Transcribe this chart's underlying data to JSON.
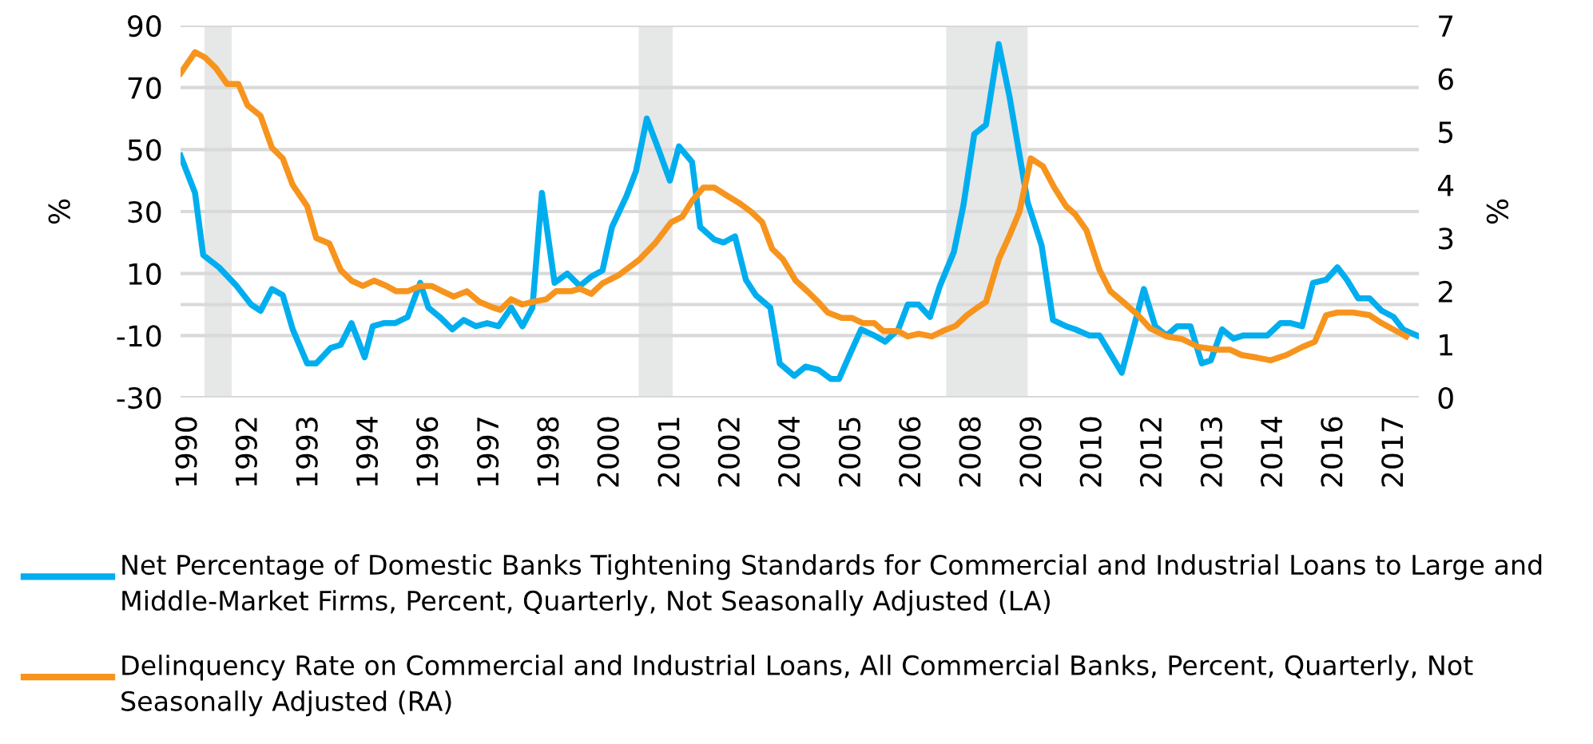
{
  "chart_data": {
    "type": "line",
    "ylabel": "%",
    "y2label": "%",
    "x": [
      1990.15,
      1990.47,
      1990.65,
      1991.0,
      1991.39,
      1991.71,
      1991.92,
      1992.17,
      1992.41,
      1992.63,
      1992.95,
      1993.15,
      1993.47,
      1993.69,
      1993.93,
      1994.22,
      1994.4,
      1994.64,
      1994.89,
      1995.17,
      1995.45,
      1995.63,
      1995.88,
      1996.16,
      1996.41,
      1996.68,
      1996.93,
      1997.18,
      1997.46,
      1997.71,
      1997.93,
      1998.14,
      1998.42,
      1998.7,
      1998.98,
      1999.23,
      1999.48,
      1999.69,
      2000.01,
      2000.22,
      2000.46,
      2000.72,
      2000.97,
      2001.17,
      2001.46,
      2001.64,
      2001.95,
      2002.16,
      2002.41,
      2002.65,
      2002.87,
      2003.19,
      2003.4,
      2003.72,
      2003.97,
      2004.25,
      2004.53,
      2004.71,
      2004.95,
      2005.2,
      2005.49,
      2005.73,
      2006.02,
      2006.23,
      2006.47,
      2006.72,
      2006.94,
      2007.25,
      2007.46,
      2007.7,
      2007.96,
      2008.24,
      2008.48,
      2008.88,
      2009.19,
      2009.44,
      2009.73,
      2009.93,
      2010.25,
      2010.47,
      2010.96,
      2011.45,
      2011.7,
      2011.95,
      2012.19,
      2012.48,
      2012.73,
      2012.93,
      2013.18,
      2013.43,
      2013.64,
      2013.89,
      2014.18,
      2014.47,
      2014.7,
      2014.95,
      2015.19,
      2015.48,
      2015.73,
      2015.94,
      2016.19,
      2016.44,
      2016.71,
      2016.97,
      2017.18,
      2017.49
    ],
    "series": [
      {
        "name": "Net Percentage of Domestic Banks Tightening Standards for Commercial and Industrial Loans to Large and Middle-Market Firms, Percent, Quarterly, Not Seasonally Adjusted (LA)",
        "color": "#00aeef",
        "values": [
          48,
          36,
          16,
          12,
          6,
          0,
          -2,
          5,
          3,
          -8,
          -19,
          -19,
          -14,
          -13,
          -6,
          -17,
          -7,
          -6,
          -6,
          -4,
          7,
          -1,
          -4,
          -8,
          -5,
          -7,
          -6,
          -7,
          -1,
          -7,
          -1,
          36,
          7,
          10,
          6,
          9,
          11,
          25,
          35,
          43,
          60,
          50,
          40,
          51,
          46,
          25,
          21,
          20,
          22,
          8,
          3,
          -1,
          -19,
          -23,
          -20,
          -21,
          -24,
          -24,
          -16,
          -8,
          -10,
          -12,
          -8,
          0,
          0,
          -4,
          6,
          17,
          32,
          55,
          58,
          84,
          67,
          33,
          19,
          -5,
          -7,
          -8,
          -10,
          -10,
          -22,
          5,
          -7,
          -10,
          -7,
          -7,
          -19,
          -18,
          -8,
          -11,
          -10,
          -10,
          -10,
          -6,
          -6,
          -7,
          7,
          8,
          12,
          8,
          2,
          2,
          -2,
          -4,
          -8,
          -10
        ]
      },
      {
        "name": "Delinquency Rate on Commercial and Industrial Loans, All Commercial Banks, Percent, Quarterly, Not Seasonally Adjusted (RA)",
        "color": "#f7941d",
        "axis": "y2",
        "x": [
          1990.15,
          1990.47,
          1990.69,
          1990.93,
          1991.18,
          1991.43,
          1991.63,
          1991.92,
          1992.17,
          1992.41,
          1992.63,
          1992.95,
          1993.15,
          1993.44,
          1993.69,
          1993.93,
          1994.18,
          1994.43,
          1994.71,
          1994.92,
          1995.17,
          1995.45,
          1995.7,
          1995.94,
          1996.19,
          1996.48,
          1996.76,
          1997.04,
          1997.22,
          1997.46,
          1997.71,
          1997.93,
          1998.24,
          1998.45,
          1998.78,
          1998.98,
          1999.23,
          1999.48,
          1999.83,
          2000.3,
          2000.64,
          2001.0,
          2001.24,
          2001.46,
          2001.71,
          2001.95,
          2002.23,
          2002.52,
          2002.76,
          2003.01,
          2003.23,
          2003.47,
          2003.75,
          2004.01,
          2004.25,
          2004.46,
          2004.77,
          2004.99,
          2005.24,
          2005.49,
          2005.69,
          2006.02,
          2006.23,
          2006.47,
          2006.76,
          2007.0,
          2007.29,
          2007.54,
          2007.78,
          2007.96,
          2008.24,
          2008.48,
          2008.7,
          2008.95,
          2009.22,
          2009.47,
          2009.73,
          2009.93,
          2010.18,
          2010.47,
          2010.71,
          2010.99,
          2011.32,
          2011.59,
          2011.95,
          2012.3,
          2012.66,
          2013.08,
          2013.36,
          2013.61,
          2013.96,
          2014.25,
          2014.6,
          2014.95,
          2015.23,
          2015.48,
          2015.73,
          2016.08,
          2016.44,
          2016.71,
          2017.25
        ],
        "values": [
          6.1,
          6.5,
          6.4,
          6.2,
          5.9,
          5.9,
          5.5,
          5.3,
          4.7,
          4.5,
          4.0,
          3.6,
          3.0,
          2.9,
          2.4,
          2.2,
          2.1,
          2.2,
          2.1,
          2.0,
          2.0,
          2.1,
          2.1,
          2.0,
          1.9,
          2.0,
          1.8,
          1.7,
          1.65,
          1.85,
          1.75,
          1.8,
          1.85,
          2.0,
          2.0,
          2.05,
          1.95,
          2.15,
          2.3,
          2.6,
          2.9,
          3.3,
          3.4,
          3.7,
          3.95,
          3.95,
          3.8,
          3.65,
          3.5,
          3.3,
          2.8,
          2.6,
          2.2,
          2.0,
          1.8,
          1.6,
          1.5,
          1.5,
          1.4,
          1.4,
          1.25,
          1.25,
          1.15,
          1.2,
          1.15,
          1.25,
          1.35,
          1.55,
          1.7,
          1.8,
          2.6,
          3.05,
          3.5,
          4.5,
          4.35,
          3.95,
          3.6,
          3.45,
          3.15,
          2.4,
          2.0,
          1.8,
          1.55,
          1.3,
          1.15,
          1.1,
          0.95,
          0.9,
          0.9,
          0.8,
          0.75,
          0.7,
          0.8,
          0.95,
          1.05,
          1.55,
          1.6,
          1.6,
          1.55,
          1.4,
          1.15
        ]
      }
    ],
    "xlim": [
      1990.15,
      2017.53
    ],
    "xticks": [
      {
        "value": 1990.33,
        "label": "1990"
      },
      {
        "value": 1991.66,
        "label": "1992"
      },
      {
        "value": 1993.0,
        "label": "1993"
      },
      {
        "value": 1994.33,
        "label": "1994"
      },
      {
        "value": 1995.66,
        "label": "1996"
      },
      {
        "value": 1997.0,
        "label": "1997"
      },
      {
        "value": 1998.33,
        "label": "1998"
      },
      {
        "value": 1999.66,
        "label": "2000"
      },
      {
        "value": 2001.0,
        "label": "2001"
      },
      {
        "value": 2002.33,
        "label": "2002"
      },
      {
        "value": 2003.66,
        "label": "2004"
      },
      {
        "value": 2005.0,
        "label": "2005"
      },
      {
        "value": 2006.33,
        "label": "2006"
      },
      {
        "value": 2007.66,
        "label": "2008"
      },
      {
        "value": 2009.0,
        "label": "2009"
      },
      {
        "value": 2010.33,
        "label": "2010"
      },
      {
        "value": 2011.66,
        "label": "2012"
      },
      {
        "value": 2013.0,
        "label": "2013"
      },
      {
        "value": 2014.33,
        "label": "2014"
      },
      {
        "value": 2015.66,
        "label": "2016"
      },
      {
        "value": 2017.0,
        "label": "2017"
      }
    ],
    "ylim": [
      -30,
      90
    ],
    "yticks": [
      -30,
      -10,
      10,
      30,
      50,
      70,
      90
    ],
    "y2lim": [
      0,
      7
    ],
    "y2ticks": [
      0,
      1,
      2,
      3,
      4,
      5,
      6,
      7
    ],
    "grid": "y",
    "legend": "bottom",
    "marker": "none",
    "line_style": "solid",
    "ref_lines": [
      {
        "axis": "y",
        "value": 0,
        "color": "#d9d9d9"
      }
    ],
    "bands": [
      {
        "axis": "x",
        "from": 1990.68,
        "to": 1991.28,
        "color": "#e6e7e7"
      },
      {
        "axis": "x",
        "from": 2000.28,
        "to": 2001.03,
        "color": "#e6e7e7"
      },
      {
        "axis": "x",
        "from": 2007.08,
        "to": 2008.88,
        "color": "#e6e7e7"
      }
    ]
  }
}
